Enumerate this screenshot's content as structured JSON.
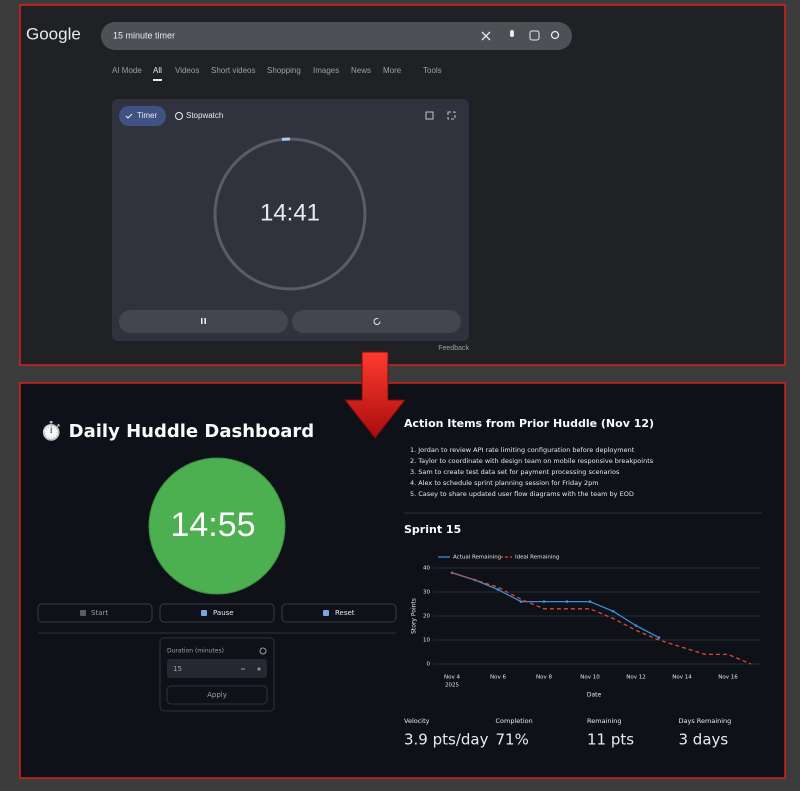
{
  "google": {
    "logo": "Google",
    "search_query": "15 minute timer",
    "tabs": [
      "AI Mode",
      "All",
      "Videos",
      "Short videos",
      "Shopping",
      "Images",
      "News",
      "More",
      "Tools"
    ],
    "timer": {
      "modes": [
        "Timer",
        "Stopwatch"
      ],
      "display": "14:41"
    },
    "feedback": "Feedback"
  },
  "dashboard": {
    "title": "⏱️ Daily Huddle Dashboard",
    "timer_display": "14:55",
    "buttons": [
      "Start",
      "Pause",
      "Reset"
    ],
    "duration": {
      "label": "Duration (minutes)",
      "value": "15",
      "apply": "Apply"
    },
    "action_items": {
      "title": "Action Items from Prior Huddle (Nov 12)",
      "items": [
        "1. Jordan to review API rate limiting configuration before deployment",
        "2. Taylor to coordinate with design team on mobile responsive breakpoints",
        "3. Sam to create test data set for payment processing scenarios",
        "4. Alex to schedule sprint planning session for Friday 2pm",
        "5. Casey to share updated user flow diagrams with the team by EOD"
      ]
    },
    "metrics": [
      {
        "label": "Velocity",
        "value": "3.9 pts/day"
      },
      {
        "label": "Completion",
        "value": "71%"
      },
      {
        "label": "Remaining",
        "value": "11 pts"
      },
      {
        "label": "Days Remaining",
        "value": "3 days"
      }
    ]
  },
  "chart_data": {
    "type": "line",
    "title": "Sprint 15",
    "x": [
      "2025-11-04",
      "2025-11-05",
      "2025-11-06",
      "2025-11-07",
      "2025-11-08",
      "2025-11-09",
      "2025-11-10",
      "2025-11-11",
      "2025-11-12",
      "2025-11-13",
      "2025-11-14",
      "2025-11-15",
      "2025-11-16",
      "2025-11-17"
    ],
    "series": [
      {
        "name": "Actual Remaining",
        "color": "#3b8fd9",
        "dash": false,
        "values": [
          38,
          35,
          31,
          26,
          26,
          26,
          26,
          22,
          16,
          11,
          null,
          null,
          null,
          null
        ]
      },
      {
        "name": "Ideal Remaining",
        "color": "#e0463c",
        "dash": true,
        "values": [
          38,
          35,
          32,
          27,
          23,
          23,
          23,
          19,
          14,
          10,
          7,
          4,
          4,
          0
        ]
      }
    ],
    "xlim": [
      "2025-11-03",
      "2025-11-18"
    ],
    "ylim": [
      -1.5,
      41.5
    ],
    "yticks": [
      0,
      10,
      20,
      30,
      40
    ],
    "xticks": [
      {
        "value": "2025-11-04",
        "label": "Nov 4"
      },
      {
        "value": "2025-11-06",
        "label": "Nov 6"
      },
      {
        "value": "2025-11-08",
        "label": "Nov 8"
      },
      {
        "value": "2025-11-10",
        "label": "Nov 10"
      },
      {
        "value": "2025-11-12",
        "label": "Nov 12"
      },
      {
        "value": "2025-11-14",
        "label": "Nov 14"
      },
      {
        "value": "2025-11-16",
        "label": "Nov 16"
      }
    ],
    "xtick_year": "2025",
    "xlabel": "Date",
    "ylabel": "Story Points",
    "grid": true,
    "legend": "top-left"
  }
}
